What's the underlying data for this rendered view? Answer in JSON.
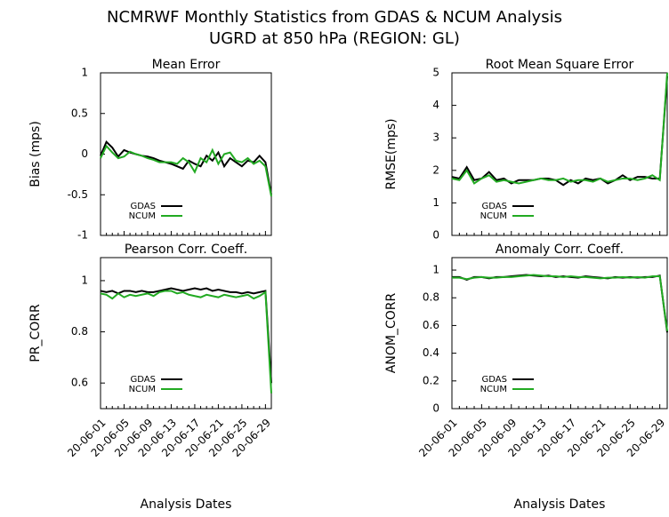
{
  "title": "NCMRWF Monthly Statistics from GDAS & NCUM Analysis",
  "subtitle": "UGRD at 850 hPa (REGION: GL)",
  "chart_data": [
    {
      "type": "line",
      "title": "Mean Error",
      "y_label": "Bias (mps)",
      "ylim": [
        -1,
        1
      ],
      "yticks": [
        -1,
        -0.5,
        0,
        0.5,
        1
      ],
      "legend": "lower left",
      "series": [
        {
          "name": "GDAS",
          "color": "#000000",
          "values": [
            -0.02,
            0.15,
            0.08,
            -0.03,
            0.05,
            0.02,
            0.0,
            -0.02,
            -0.03,
            -0.05,
            -0.08,
            -0.1,
            -0.12,
            -0.15,
            -0.18,
            -0.08,
            -0.12,
            -0.15,
            -0.02,
            -0.08,
            0.02,
            -0.15,
            -0.05,
            -0.1,
            -0.15,
            -0.08,
            -0.1,
            -0.02,
            -0.1,
            -0.5
          ]
        },
        {
          "name": "NCUM",
          "color": "#22aa22",
          "values": [
            -0.05,
            0.1,
            0.02,
            -0.05,
            -0.03,
            0.03,
            0.0,
            -0.02,
            -0.05,
            -0.07,
            -0.1,
            -0.1,
            -0.1,
            -0.12,
            -0.05,
            -0.1,
            -0.22,
            -0.05,
            -0.1,
            0.05,
            -0.12,
            0.0,
            0.02,
            -0.08,
            -0.1,
            -0.05,
            -0.12,
            -0.08,
            -0.15,
            -0.52
          ]
        }
      ]
    },
    {
      "type": "line",
      "title": "Root Mean Square Error",
      "y_label": "RMSE(mps)",
      "ylim": [
        0,
        5
      ],
      "yticks": [
        0,
        1,
        2,
        3,
        4,
        5
      ],
      "legend": "lower left",
      "series": [
        {
          "name": "GDAS",
          "color": "#000000",
          "values": [
            1.8,
            1.75,
            2.1,
            1.7,
            1.75,
            1.95,
            1.7,
            1.75,
            1.6,
            1.7,
            1.7,
            1.7,
            1.75,
            1.75,
            1.7,
            1.55,
            1.7,
            1.6,
            1.75,
            1.7,
            1.75,
            1.6,
            1.7,
            1.85,
            1.7,
            1.8,
            1.8,
            1.75,
            1.75,
            4.9
          ]
        },
        {
          "name": "NCUM",
          "color": "#22aa22",
          "values": [
            1.75,
            1.7,
            2.0,
            1.6,
            1.75,
            1.85,
            1.65,
            1.7,
            1.65,
            1.6,
            1.65,
            1.7,
            1.75,
            1.7,
            1.7,
            1.75,
            1.65,
            1.7,
            1.7,
            1.65,
            1.75,
            1.65,
            1.7,
            1.75,
            1.75,
            1.7,
            1.75,
            1.85,
            1.7,
            5.0
          ]
        }
      ]
    },
    {
      "type": "line",
      "title": "Pearson Corr. Coeff.",
      "y_label": "PR_CORR",
      "x_label": "Analysis Dates",
      "categories": [
        "20-06-01",
        null,
        null,
        null,
        "20-06-05",
        null,
        null,
        null,
        "20-06-09",
        null,
        null,
        null,
        "20-06-13",
        null,
        null,
        null,
        "20-06-17",
        null,
        null,
        null,
        "20-06-21",
        null,
        null,
        null,
        "20-06-25",
        null,
        null,
        null,
        "20-06-29",
        null
      ],
      "ylim": [
        0.5,
        1.09
      ],
      "yticks": [
        0.6,
        0.8,
        1
      ],
      "legend": "lower left",
      "series": [
        {
          "name": "GDAS",
          "color": "#000000",
          "values": [
            0.96,
            0.955,
            0.96,
            0.95,
            0.96,
            0.96,
            0.955,
            0.96,
            0.955,
            0.955,
            0.96,
            0.965,
            0.97,
            0.965,
            0.96,
            0.965,
            0.97,
            0.965,
            0.97,
            0.96,
            0.965,
            0.96,
            0.955,
            0.955,
            0.95,
            0.955,
            0.95,
            0.955,
            0.96,
            0.6
          ]
        },
        {
          "name": "NCUM",
          "color": "#22aa22",
          "values": [
            0.95,
            0.945,
            0.93,
            0.95,
            0.935,
            0.945,
            0.94,
            0.945,
            0.95,
            0.94,
            0.955,
            0.96,
            0.96,
            0.95,
            0.955,
            0.945,
            0.94,
            0.935,
            0.945,
            0.94,
            0.935,
            0.945,
            0.94,
            0.935,
            0.94,
            0.945,
            0.93,
            0.94,
            0.955,
            0.56
          ]
        }
      ]
    },
    {
      "type": "line",
      "title": "Anomaly Corr. Coeff.",
      "y_label": "ANOM_CORR",
      "x_label": "Analysis Dates",
      "categories": [
        "20-06-01",
        null,
        null,
        null,
        "20-06-05",
        null,
        null,
        null,
        "20-06-09",
        null,
        null,
        null,
        "20-06-13",
        null,
        null,
        null,
        "20-06-17",
        null,
        null,
        null,
        "20-06-21",
        null,
        null,
        null,
        "20-06-25",
        null,
        null,
        null,
        "20-06-29",
        null
      ],
      "ylim": [
        0,
        1.09
      ],
      "yticks": [
        0,
        0.2,
        0.4,
        0.6,
        0.8,
        1
      ],
      "legend": "lower left",
      "series": [
        {
          "name": "GDAS",
          "color": "#000000",
          "values": [
            0.95,
            0.95,
            0.93,
            0.95,
            0.95,
            0.94,
            0.95,
            0.95,
            0.955,
            0.96,
            0.965,
            0.96,
            0.955,
            0.96,
            0.95,
            0.955,
            0.95,
            0.945,
            0.955,
            0.95,
            0.945,
            0.94,
            0.95,
            0.945,
            0.95,
            0.945,
            0.95,
            0.95,
            0.96,
            0.55
          ]
        },
        {
          "name": "NCUM",
          "color": "#22aa22",
          "values": [
            0.945,
            0.945,
            0.935,
            0.945,
            0.95,
            0.945,
            0.945,
            0.95,
            0.95,
            0.955,
            0.96,
            0.965,
            0.96,
            0.955,
            0.955,
            0.95,
            0.955,
            0.95,
            0.95,
            0.945,
            0.94,
            0.945,
            0.945,
            0.95,
            0.945,
            0.95,
            0.945,
            0.955,
            0.955,
            0.56
          ]
        }
      ]
    }
  ]
}
